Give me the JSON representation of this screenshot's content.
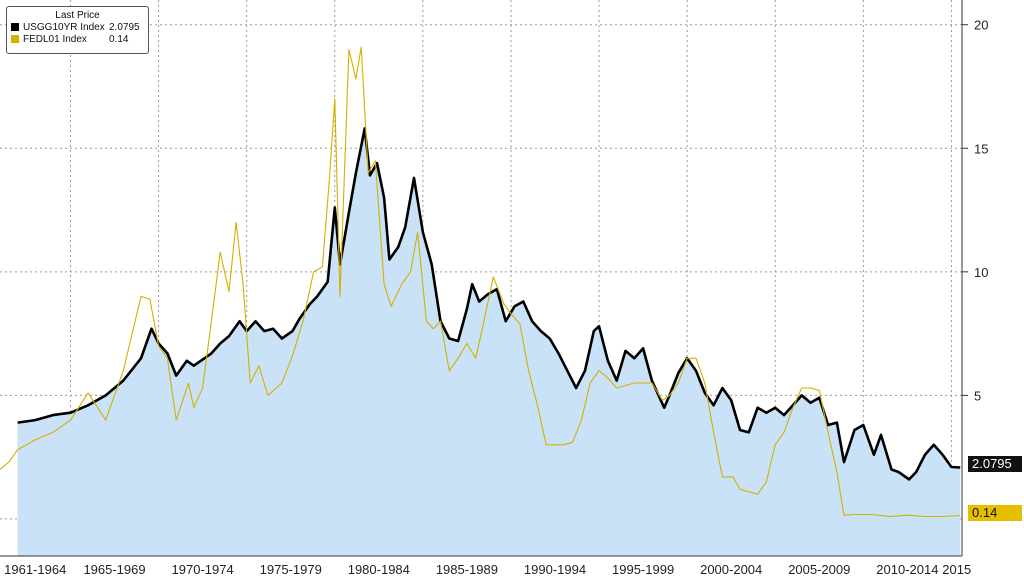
{
  "chart_data": {
    "type": "line",
    "legend": {
      "title": "Last Price",
      "placement": "top-left",
      "entries": [
        {
          "name": "USGG10YR Index",
          "value": "2.0795",
          "color": "#000000"
        },
        {
          "name": "FEDL01 Index",
          "value": "0.14",
          "color": "#d4b000"
        }
      ]
    },
    "x_tick_labels": [
      "1961-1964",
      "1965-1969",
      "1970-1974",
      "1975-1979",
      "1980-1984",
      "1985-1989",
      "1990-1994",
      "1995-1999",
      "2000-2004",
      "2005-2009",
      "2010-2014",
      "2015"
    ],
    "y_ticks": [
      5,
      10,
      15,
      20
    ],
    "ylim": [
      -1.5,
      21
    ],
    "xlim": [
      1961.0,
      2015.6
    ],
    "grid": true,
    "series": [
      {
        "name": "USGG10YR Index",
        "style": "line+area",
        "color": "#000000",
        "fill": "#c9e2f8",
        "last_value": "2.0795",
        "points": [
          [
            1962.0,
            3.9
          ],
          [
            1963.0,
            4.0
          ],
          [
            1964.0,
            4.2
          ],
          [
            1965.0,
            4.3
          ],
          [
            1966.0,
            4.6
          ],
          [
            1967.0,
            5.0
          ],
          [
            1968.0,
            5.6
          ],
          [
            1969.0,
            6.5
          ],
          [
            1969.6,
            7.7
          ],
          [
            1970.0,
            7.1
          ],
          [
            1970.5,
            6.7
          ],
          [
            1971.0,
            5.8
          ],
          [
            1971.6,
            6.4
          ],
          [
            1972.0,
            6.2
          ],
          [
            1973.0,
            6.7
          ],
          [
            1973.5,
            7.1
          ],
          [
            1974.0,
            7.4
          ],
          [
            1974.6,
            8.0
          ],
          [
            1975.0,
            7.6
          ],
          [
            1975.5,
            8.0
          ],
          [
            1976.0,
            7.6
          ],
          [
            1976.5,
            7.7
          ],
          [
            1977.0,
            7.3
          ],
          [
            1977.6,
            7.6
          ],
          [
            1978.0,
            8.1
          ],
          [
            1978.6,
            8.7
          ],
          [
            1979.0,
            9.0
          ],
          [
            1979.6,
            9.6
          ],
          [
            1980.0,
            12.6
          ],
          [
            1980.3,
            10.3
          ],
          [
            1980.8,
            12.4
          ],
          [
            1981.2,
            14.0
          ],
          [
            1981.7,
            15.8
          ],
          [
            1982.0,
            13.9
          ],
          [
            1982.4,
            14.4
          ],
          [
            1982.8,
            13.0
          ],
          [
            1983.1,
            10.5
          ],
          [
            1983.6,
            11.0
          ],
          [
            1984.0,
            11.8
          ],
          [
            1984.5,
            13.8
          ],
          [
            1985.0,
            11.6
          ],
          [
            1985.5,
            10.3
          ],
          [
            1986.0,
            8.0
          ],
          [
            1986.5,
            7.3
          ],
          [
            1987.0,
            7.2
          ],
          [
            1987.5,
            8.5
          ],
          [
            1987.8,
            9.5
          ],
          [
            1988.2,
            8.8
          ],
          [
            1988.7,
            9.1
          ],
          [
            1989.2,
            9.3
          ],
          [
            1989.7,
            8.0
          ],
          [
            1990.2,
            8.6
          ],
          [
            1990.7,
            8.8
          ],
          [
            1991.2,
            8.0
          ],
          [
            1991.7,
            7.6
          ],
          [
            1992.2,
            7.3
          ],
          [
            1992.7,
            6.7
          ],
          [
            1993.2,
            6.0
          ],
          [
            1993.7,
            5.3
          ],
          [
            1994.2,
            6.0
          ],
          [
            1994.7,
            7.6
          ],
          [
            1995.0,
            7.8
          ],
          [
            1995.5,
            6.4
          ],
          [
            1996.0,
            5.6
          ],
          [
            1996.5,
            6.8
          ],
          [
            1997.0,
            6.5
          ],
          [
            1997.5,
            6.9
          ],
          [
            1998.0,
            5.6
          ],
          [
            1998.7,
            4.5
          ],
          [
            1999.0,
            5.0
          ],
          [
            1999.5,
            5.9
          ],
          [
            2000.0,
            6.5
          ],
          [
            2000.5,
            6.0
          ],
          [
            2001.0,
            5.1
          ],
          [
            2001.5,
            4.6
          ],
          [
            2002.0,
            5.3
          ],
          [
            2002.5,
            4.8
          ],
          [
            2003.0,
            3.6
          ],
          [
            2003.5,
            3.5
          ],
          [
            2004.0,
            4.5
          ],
          [
            2004.5,
            4.3
          ],
          [
            2005.0,
            4.5
          ],
          [
            2005.5,
            4.2
          ],
          [
            2006.0,
            4.6
          ],
          [
            2006.5,
            5.0
          ],
          [
            2007.0,
            4.7
          ],
          [
            2007.5,
            4.9
          ],
          [
            2008.0,
            3.8
          ],
          [
            2008.5,
            3.9
          ],
          [
            2008.9,
            2.3
          ],
          [
            2009.5,
            3.6
          ],
          [
            2010.0,
            3.8
          ],
          [
            2010.6,
            2.6
          ],
          [
            2011.0,
            3.4
          ],
          [
            2011.6,
            2.0
          ],
          [
            2012.0,
            1.9
          ],
          [
            2012.6,
            1.6
          ],
          [
            2013.0,
            1.9
          ],
          [
            2013.5,
            2.6
          ],
          [
            2014.0,
            3.0
          ],
          [
            2014.5,
            2.6
          ],
          [
            2015.0,
            2.1
          ],
          [
            2015.5,
            2.08
          ]
        ]
      },
      {
        "name": "FEDL01 Index",
        "style": "line",
        "color": "#d4b000",
        "last_value": "0.14",
        "points": [
          [
            1961.0,
            2.0
          ],
          [
            1961.5,
            2.3
          ],
          [
            1962.0,
            2.8
          ],
          [
            1963.0,
            3.2
          ],
          [
            1964.0,
            3.5
          ],
          [
            1965.0,
            4.0
          ],
          [
            1966.0,
            5.1
          ],
          [
            1967.0,
            4.0
          ],
          [
            1968.0,
            6.0
          ],
          [
            1969.0,
            9.0
          ],
          [
            1969.5,
            8.9
          ],
          [
            1970.0,
            7.0
          ],
          [
            1970.5,
            6.5
          ],
          [
            1971.0,
            4.0
          ],
          [
            1971.7,
            5.5
          ],
          [
            1972.0,
            4.5
          ],
          [
            1972.5,
            5.3
          ],
          [
            1973.0,
            8.0
          ],
          [
            1973.5,
            10.8
          ],
          [
            1974.0,
            9.2
          ],
          [
            1974.4,
            12.0
          ],
          [
            1974.8,
            9.5
          ],
          [
            1975.2,
            5.5
          ],
          [
            1975.7,
            6.2
          ],
          [
            1976.2,
            5.0
          ],
          [
            1977.0,
            5.5
          ],
          [
            1977.6,
            6.6
          ],
          [
            1978.2,
            8.0
          ],
          [
            1978.8,
            10.0
          ],
          [
            1979.3,
            10.2
          ],
          [
            1979.7,
            13.8
          ],
          [
            1980.0,
            17.0
          ],
          [
            1980.3,
            9.0
          ],
          [
            1980.8,
            19.0
          ],
          [
            1981.2,
            17.8
          ],
          [
            1981.5,
            19.1
          ],
          [
            1981.9,
            14.0
          ],
          [
            1982.3,
            14.5
          ],
          [
            1982.8,
            9.5
          ],
          [
            1983.2,
            8.6
          ],
          [
            1983.8,
            9.5
          ],
          [
            1984.3,
            10.0
          ],
          [
            1984.7,
            11.6
          ],
          [
            1985.2,
            8.0
          ],
          [
            1985.6,
            7.7
          ],
          [
            1986.0,
            8.0
          ],
          [
            1986.5,
            6.0
          ],
          [
            1987.0,
            6.5
          ],
          [
            1987.5,
            7.1
          ],
          [
            1988.0,
            6.5
          ],
          [
            1988.5,
            8.1
          ],
          [
            1989.0,
            9.8
          ],
          [
            1989.6,
            8.7
          ],
          [
            1990.0,
            8.3
          ],
          [
            1990.5,
            7.9
          ],
          [
            1991.0,
            6.0
          ],
          [
            1991.5,
            4.6
          ],
          [
            1992.0,
            3.0
          ],
          [
            1992.5,
            3.0
          ],
          [
            1993.0,
            3.0
          ],
          [
            1993.5,
            3.1
          ],
          [
            1994.0,
            4.0
          ],
          [
            1994.5,
            5.5
          ],
          [
            1995.0,
            6.0
          ],
          [
            1995.5,
            5.7
          ],
          [
            1996.0,
            5.3
          ],
          [
            1996.5,
            5.4
          ],
          [
            1997.0,
            5.5
          ],
          [
            1998.0,
            5.5
          ],
          [
            1998.6,
            4.8
          ],
          [
            1999.0,
            5.0
          ],
          [
            1999.5,
            5.5
          ],
          [
            2000.0,
            6.5
          ],
          [
            2000.5,
            6.5
          ],
          [
            2001.0,
            5.5
          ],
          [
            2001.5,
            3.5
          ],
          [
            2002.0,
            1.7
          ],
          [
            2002.6,
            1.7
          ],
          [
            2003.0,
            1.2
          ],
          [
            2004.0,
            1.0
          ],
          [
            2004.5,
            1.5
          ],
          [
            2005.0,
            3.0
          ],
          [
            2005.5,
            3.5
          ],
          [
            2006.0,
            4.5
          ],
          [
            2006.5,
            5.3
          ],
          [
            2007.0,
            5.3
          ],
          [
            2007.5,
            5.2
          ],
          [
            2008.0,
            3.5
          ],
          [
            2008.5,
            1.9
          ],
          [
            2008.9,
            0.15
          ],
          [
            2009.5,
            0.18
          ],
          [
            2010.5,
            0.18
          ],
          [
            2011.5,
            0.1
          ],
          [
            2012.5,
            0.15
          ],
          [
            2013.5,
            0.1
          ],
          [
            2014.5,
            0.1
          ],
          [
            2015.5,
            0.14
          ]
        ]
      }
    ]
  }
}
